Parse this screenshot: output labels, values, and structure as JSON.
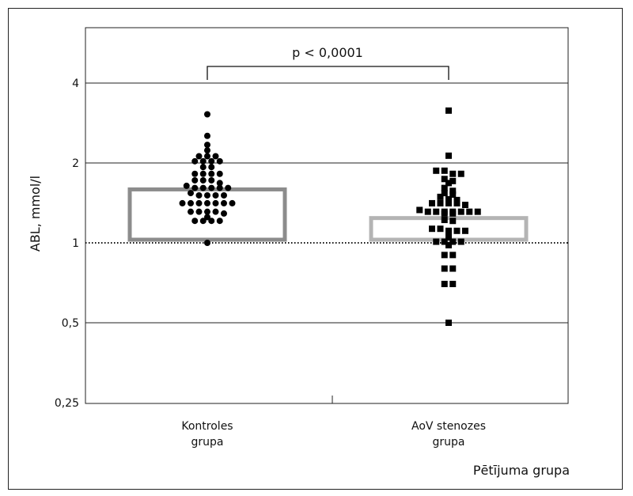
{
  "chart_data": {
    "type": "scatter",
    "subtype": "dot-plot with mean bars, log2 y-axis",
    "title": "",
    "ylabel": "ABL, mmol/l",
    "xlabel": "Pētījuma grupa",
    "y_scale": "log2",
    "ylim": [
      0.25,
      5.5
    ],
    "yticks": [
      {
        "v": 0.25,
        "label": "0,25"
      },
      {
        "v": 0.5,
        "label": "0,5"
      },
      {
        "v": 1,
        "label": "1"
      },
      {
        "v": 2,
        "label": "2"
      },
      {
        "v": 4,
        "label": "4"
      }
    ],
    "reference_line": {
      "value": 1,
      "style": "dotted"
    },
    "annotation": {
      "text": "p < 0,0001",
      "between": [
        0,
        1
      ]
    },
    "groups": [
      {
        "name_line1": "Kontroles",
        "name_line2": "grupa",
        "marker": "circle",
        "bar_value": 1.59,
        "bar_color": "#8c8c8c",
        "values": [
          3.05,
          2.53,
          2.34,
          2.23,
          2.12,
          2.12,
          2.12,
          2.03,
          2.03,
          2.03,
          2.03,
          1.93,
          1.93,
          1.82,
          1.82,
          1.82,
          1.82,
          1.72,
          1.72,
          1.72,
          1.68,
          1.64,
          1.61,
          1.61,
          1.61,
          1.61,
          1.61,
          1.54,
          1.51,
          1.51,
          1.51,
          1.51,
          1.41,
          1.41,
          1.41,
          1.41,
          1.41,
          1.41,
          1.41,
          1.31,
          1.31,
          1.31,
          1.31,
          1.29,
          1.25,
          1.21,
          1.21,
          1.21,
          1.21,
          1.0
        ]
      },
      {
        "name_line1": "AoV stenozes",
        "name_line2": "grupa",
        "marker": "square",
        "bar_value": 1.24,
        "bar_color": "#b4b4b4",
        "values": [
          3.15,
          2.13,
          1.87,
          1.87,
          1.82,
          1.82,
          1.74,
          1.71,
          1.68,
          1.61,
          1.57,
          1.54,
          1.52,
          1.49,
          1.46,
          1.45,
          1.41,
          1.41,
          1.41,
          1.41,
          1.39,
          1.33,
          1.31,
          1.31,
          1.31,
          1.31,
          1.31,
          1.31,
          1.31,
          1.29,
          1.29,
          1.22,
          1.21,
          1.13,
          1.13,
          1.11,
          1.11,
          1.11,
          1.09,
          1.05,
          1.01,
          1.01,
          1.01,
          1.01,
          0.98,
          0.9,
          0.9,
          0.8,
          0.8,
          0.7,
          0.7,
          0.5
        ]
      }
    ]
  }
}
